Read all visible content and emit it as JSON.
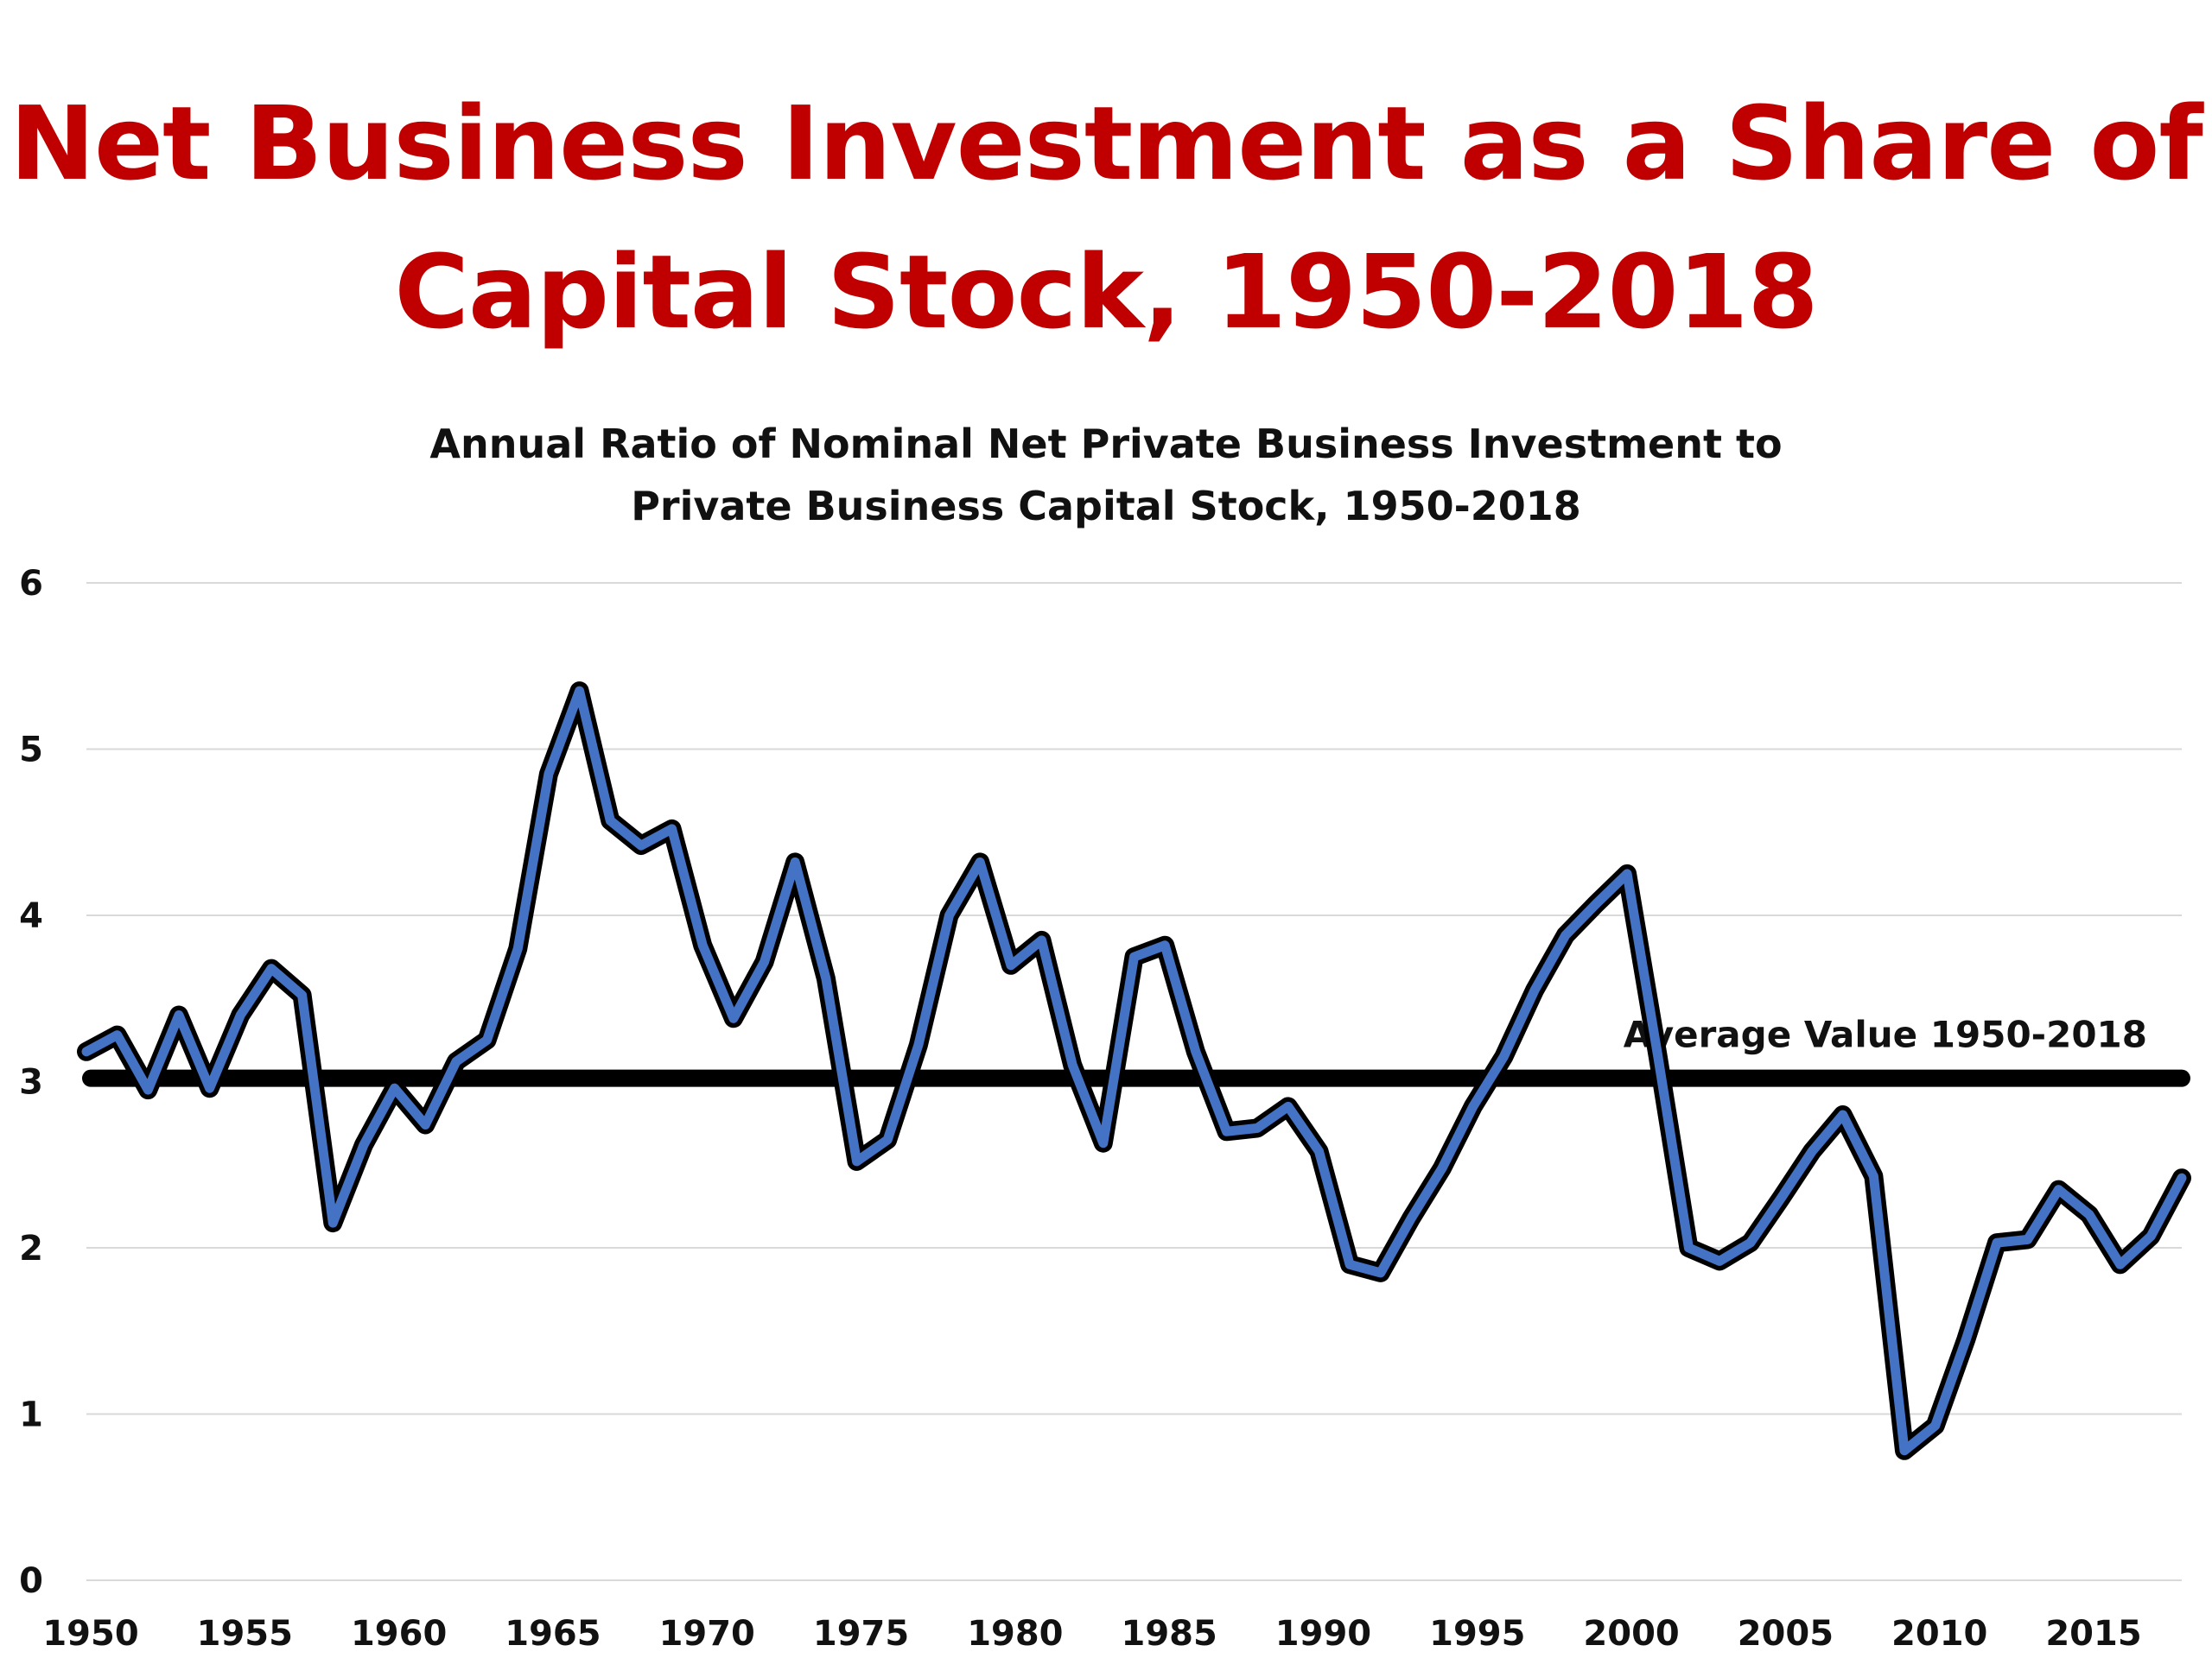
{
  "chart_data": {
    "type": "line",
    "title": [
      "Net Business Investment as a Share of",
      "Capital Stock, 1950-2018"
    ],
    "subtitle": [
      "Annual Ratio of Nominal Net Private Business Investment to",
      "Private Business Capital Stock, 1950-2018"
    ],
    "xlabel": "",
    "ylabel": "",
    "xlim": [
      1950,
      2018
    ],
    "ylim": [
      0,
      6
    ],
    "x_ticks": [
      "1950",
      "1955",
      "1960",
      "1965",
      "1970",
      "1975",
      "1980",
      "1985",
      "1990",
      "1995",
      "2000",
      "2005",
      "2010",
      "2015"
    ],
    "y_ticks": [
      "0",
      "1",
      "2",
      "3",
      "4",
      "5",
      "6"
    ],
    "grid": true,
    "legend": "none",
    "line_color": "#4472c4",
    "outline_color": "#000000",
    "average": {
      "label": "Average Value 1950-2018",
      "value": 3.02,
      "color": "#000000"
    },
    "x": [
      1950,
      1951,
      1952,
      1953,
      1954,
      1955,
      1956,
      1957,
      1958,
      1959,
      1960,
      1961,
      1962,
      1963,
      1964,
      1965,
      1966,
      1967,
      1968,
      1969,
      1970,
      1971,
      1972,
      1973,
      1974,
      1975,
      1976,
      1977,
      1978,
      1979,
      1980,
      1981,
      1982,
      1983,
      1984,
      1985,
      1986,
      1987,
      1988,
      1989,
      1990,
      1991,
      1992,
      1993,
      1994,
      1995,
      1996,
      1997,
      1998,
      1999,
      2000,
      2001,
      2002,
      2003,
      2004,
      2005,
      2006,
      2007,
      2008,
      2009,
      2010,
      2011,
      2012,
      2013,
      2014,
      2015,
      2016,
      2017,
      2018
    ],
    "y": [
      3.18,
      3.28,
      2.95,
      3.4,
      2.96,
      3.4,
      3.68,
      3.52,
      2.15,
      2.62,
      2.96,
      2.74,
      3.12,
      3.25,
      3.8,
      4.85,
      5.35,
      4.57,
      4.42,
      4.52,
      3.82,
      3.38,
      3.72,
      4.32,
      3.62,
      2.52,
      2.65,
      3.22,
      4.0,
      4.32,
      3.7,
      3.85,
      3.1,
      2.63,
      3.75,
      3.82,
      3.18,
      2.7,
      2.72,
      2.85,
      2.58,
      1.9,
      1.85,
      2.18,
      2.48,
      2.85,
      3.15,
      3.55,
      3.88,
      4.07,
      4.25,
      3.15,
      2.0,
      1.92,
      2.03,
      2.3,
      2.58,
      2.8,
      2.43,
      0.78,
      0.93,
      1.45,
      2.03,
      2.05,
      2.35,
      2.2,
      1.9,
      2.07,
      2.42
    ]
  }
}
